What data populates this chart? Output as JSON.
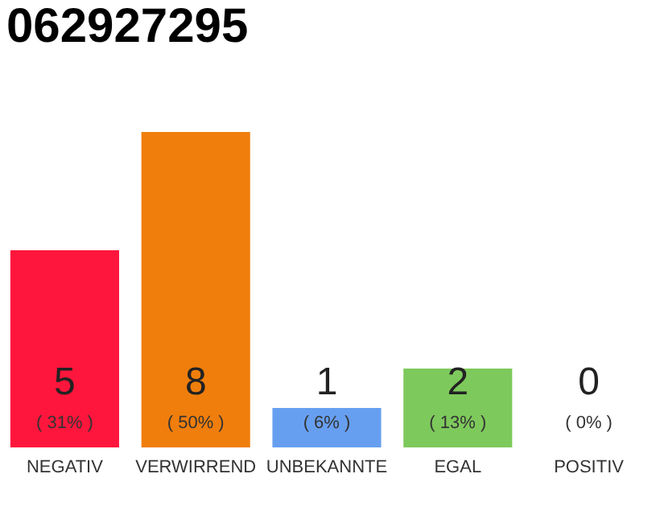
{
  "chart_data": {
    "type": "bar",
    "title": "062927295",
    "categories": [
      "NEGATIV",
      "VERWIRREND",
      "UNBEKANNTE",
      "EGAL",
      "POSITIV"
    ],
    "values": [
      5,
      8,
      1,
      2,
      0
    ],
    "colors": [
      "#ff163c",
      "#f07e0c",
      "#679ff0",
      "#7ec95c",
      "#21a348"
    ],
    "data_labels": true,
    "annotations": [
      "( 31% )",
      "( 50% )",
      "( 6% )",
      "( 13% )",
      "( 0% )"
    ],
    "grid": false
  }
}
